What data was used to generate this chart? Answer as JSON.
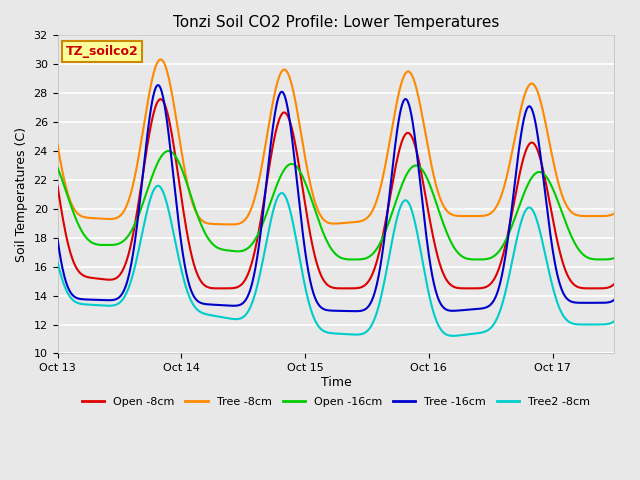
{
  "title": "Tonzi Soil CO2 Profile: Lower Temperatures",
  "xlabel": "Time",
  "ylabel": "Soil Temperatures (C)",
  "ylim": [
    10,
    32
  ],
  "yticks": [
    10,
    12,
    14,
    16,
    18,
    20,
    22,
    24,
    26,
    28,
    30,
    32
  ],
  "plot_bg_color": "#e8e8e8",
  "grid_color": "#ffffff",
  "label_box": "TZ_soilco2",
  "label_box_color": "#ffff99",
  "label_box_text_color": "#cc0000",
  "label_box_edge_color": "#cc8800",
  "lines": {
    "open_8cm": {
      "color": "#dd0000",
      "label": "Open -8cm",
      "lw": 1.5
    },
    "tree_8cm": {
      "color": "#ff8800",
      "label": "Tree -8cm",
      "lw": 1.5
    },
    "open_16cm": {
      "color": "#00cc00",
      "label": "Open -16cm",
      "lw": 1.5
    },
    "tree_16cm": {
      "color": "#0000cc",
      "label": "Tree -16cm",
      "lw": 1.5
    },
    "tree2_8cm": {
      "color": "#00cccc",
      "label": "Tree2 -8cm",
      "lw": 1.5
    }
  },
  "xtick_labels": [
    "Oct 13",
    "Oct 14",
    "Oct 15",
    "Oct 16",
    "Oct 17"
  ],
  "xtick_positions": [
    0,
    24,
    48,
    72,
    96
  ],
  "xlim": [
    0,
    108
  ]
}
